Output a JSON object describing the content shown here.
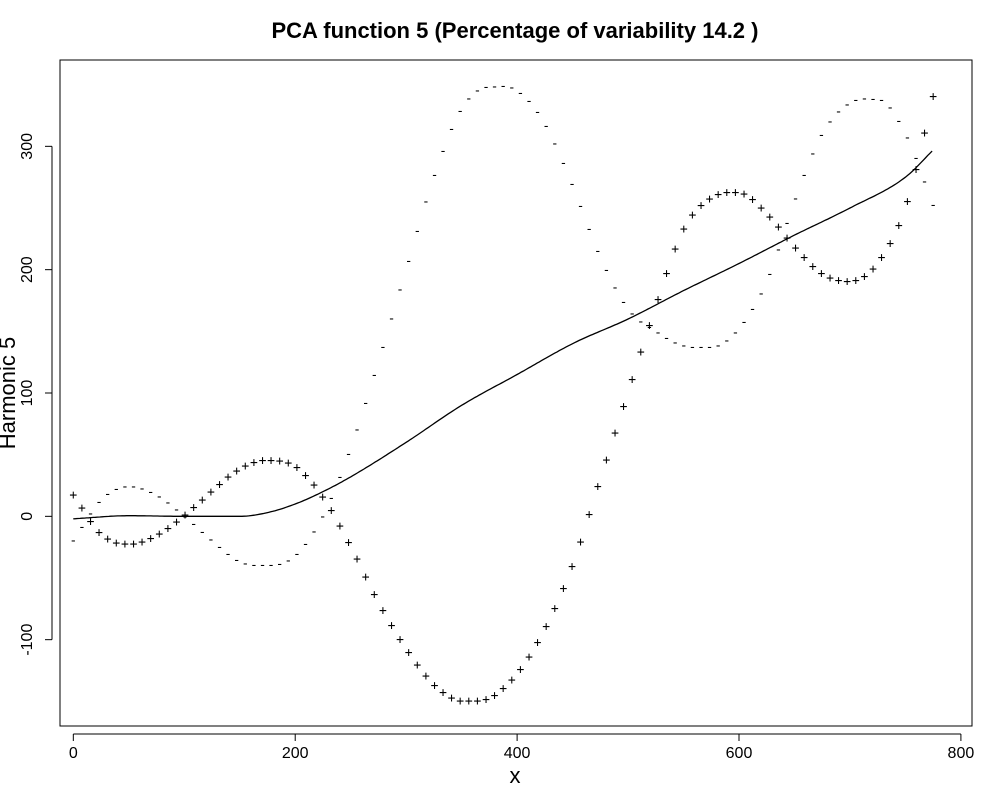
{
  "chart_data": {
    "type": "line",
    "title": "PCA function 5 (Percentage of variability 14.2 )",
    "xlabel": "x",
    "ylabel": "Harmonic 5",
    "xlim": [
      -12,
      810
    ],
    "ylim": [
      -170,
      370
    ],
    "x_ticks": [
      0,
      200,
      400,
      600,
      800
    ],
    "x_tick_labels": [
      "0",
      "200",
      "400",
      "600",
      "800"
    ],
    "y_ticks": [
      -100,
      0,
      100,
      200,
      300
    ],
    "y_tick_labels": [
      "-100",
      "0",
      "100",
      "200",
      "300"
    ],
    "grid": false,
    "legend": "none",
    "series": [
      {
        "kind": "mean",
        "style": "solid line",
        "x": [
          0,
          50,
          100,
          150,
          175,
          200,
          225,
          250,
          300,
          350,
          400,
          450,
          500,
          550,
          600,
          650,
          700,
          750,
          775
        ],
        "y": [
          -2,
          0.5,
          0,
          0,
          3,
          10,
          20,
          32,
          60,
          90,
          115,
          140,
          160,
          183,
          205,
          228,
          250,
          275,
          297
        ]
      },
      {
        "kind": "plus",
        "style": "+ marks",
        "symbol": "+",
        "x": [
          0,
          25,
          50,
          75,
          100,
          125,
          150,
          175,
          200,
          225,
          250,
          275,
          300,
          325,
          350,
          375,
          400,
          425,
          450,
          475,
          500,
          525,
          550,
          575,
          600,
          625,
          650,
          675,
          700,
          725,
          750,
          775
        ],
        "y": [
          17,
          -15,
          -23,
          -16,
          0,
          20,
          38,
          45,
          40,
          15,
          -25,
          -70,
          -108,
          -137,
          -150,
          -148,
          -128,
          -92,
          -40,
          30,
          100,
          170,
          232,
          258,
          262,
          245,
          218,
          196,
          190,
          205,
          250,
          340
        ]
      },
      {
        "kind": "minus",
        "style": "- marks",
        "symbol": "-",
        "x": [
          0,
          25,
          50,
          75,
          100,
          125,
          150,
          175,
          200,
          225,
          250,
          275,
          300,
          325,
          350,
          375,
          400,
          425,
          450,
          475,
          500,
          525,
          550,
          575,
          600,
          625,
          650,
          675,
          700,
          725,
          750,
          775
        ],
        "y": [
          -20,
          13,
          24,
          17,
          0,
          -20,
          -37,
          -40,
          -32,
          0,
          55,
          125,
          200,
          275,
          330,
          348,
          345,
          318,
          268,
          210,
          168,
          150,
          138,
          137,
          152,
          190,
          255,
          310,
          335,
          338,
          310,
          252
        ]
      }
    ]
  }
}
